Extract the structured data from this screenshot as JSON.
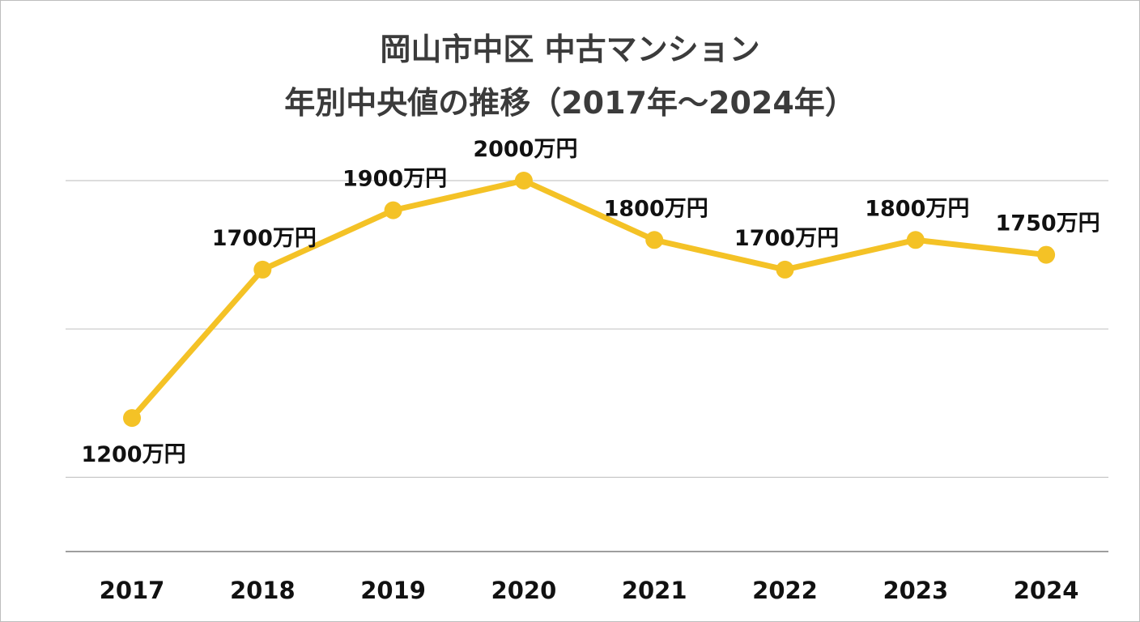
{
  "chart_data": {
    "type": "line",
    "title": "岡山市中区 中古マンション",
    "subtitle": "年別中央値の推移（2017年〜2024年）",
    "xlabel": "",
    "ylabel": "",
    "categories": [
      "2017",
      "2018",
      "2019",
      "2020",
      "2021",
      "2022",
      "2023",
      "2024"
    ],
    "series": [
      {
        "values": [
          1200,
          1700,
          1900,
          2000,
          1800,
          1700,
          1800,
          1750
        ],
        "labels": [
          "1200万円",
          "1700万円",
          "1900万円",
          "2000万円",
          "1800万円",
          "1700万円",
          "1800万円",
          "1750万円"
        ]
      }
    ],
    "ylim": [
      750,
      2000
    ],
    "gridlines": [
      1000,
      1500,
      2000
    ],
    "grid": true,
    "legend": "none",
    "colors": {
      "line": "#F4C226",
      "grid": "#c8c8c8",
      "axis": "#9e9e9e",
      "text": "#111111",
      "title": "#3b3b3b"
    }
  }
}
